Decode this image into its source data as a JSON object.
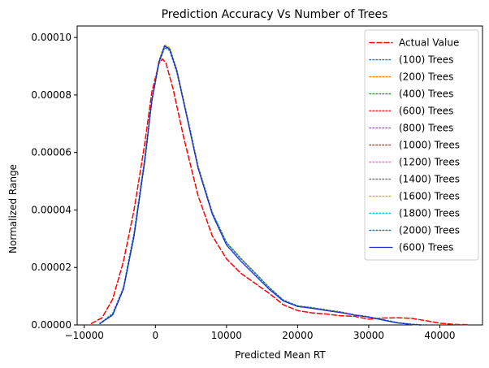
{
  "chart_data": {
    "type": "line",
    "title": "Prediction Accuracy Vs Number of Trees",
    "xlabel": "Predicted Mean RT",
    "ylabel": "Normalized Range",
    "xlim": [
      -11000,
      46000
    ],
    "ylim": [
      0,
      0.000104
    ],
    "xticks": [
      -10000,
      0,
      10000,
      20000,
      30000,
      40000
    ],
    "xtick_labels": [
      "−10000",
      "0",
      "10000",
      "20000",
      "30000",
      "40000"
    ],
    "yticks": [
      0,
      2e-05,
      4e-05,
      6e-05,
      8e-05,
      0.0001
    ],
    "ytick_labels": [
      "0.00000",
      "0.00002",
      "0.00004",
      "0.00006",
      "0.00008",
      "0.00010"
    ],
    "grid": false,
    "legend_position": "top-right",
    "series": [
      {
        "name": "Actual Value",
        "color": "#ff0000",
        "style": "dashed",
        "x": [
          -9000,
          -7500,
          -6000,
          -4500,
          -3000,
          -1500,
          -500,
          500,
          1000,
          1500,
          2500,
          4000,
          6000,
          8000,
          10000,
          12000,
          14000,
          16000,
          18000,
          20000,
          22000,
          24000,
          26000,
          28000,
          30000,
          32000,
          34000,
          36000,
          38000,
          40000,
          42000,
          44000
        ],
        "y": [
          5e-07,
          2.5e-06,
          9e-06,
          2.2e-05,
          4e-05,
          6.3e-05,
          8.1e-05,
          9.1e-05,
          9.25e-05,
          9.1e-05,
          8.2e-05,
          6.5e-05,
          4.5e-05,
          3.1e-05,
          2.3e-05,
          1.8e-05,
          1.45e-05,
          1.1e-05,
          7e-06,
          5e-06,
          4.2e-06,
          3.8e-06,
          3.2e-06,
          3e-06,
          2e-06,
          2.4e-06,
          2.5e-06,
          2.3e-06,
          1.5e-06,
          6e-07,
          2e-07,
          1e-07
        ]
      },
      {
        "name": "(100) Trees",
        "color": "#1f77b4",
        "style": "dotted",
        "x": [
          -7800,
          -6000,
          -4500,
          -3000,
          -1500,
          -500,
          500,
          1300,
          2000,
          3000,
          4500,
          6000,
          8000,
          10000,
          12000,
          14000,
          16000,
          18000,
          20000,
          22000,
          24000,
          26000,
          28000,
          30000,
          32000,
          34000,
          36000,
          37500
        ],
        "y": [
          5e-07,
          4e-06,
          1.3e-05,
          3.2e-05,
          5.8e-05,
          7.8e-05,
          9.1e-05,
          9.65e-05,
          9.55e-05,
          8.8e-05,
          7.2e-05,
          5.5e-05,
          3.9e-05,
          2.85e-05,
          2.3e-05,
          1.8e-05,
          1.3e-05,
          8.5e-06,
          6.5e-06,
          6e-06,
          5.2e-06,
          4.5e-06,
          3.5e-06,
          2.8e-06,
          1.8e-06,
          8e-07,
          2e-07,
          0.0
        ]
      },
      {
        "name": "(200) Trees",
        "color": "#ff7f0e",
        "style": "dotted",
        "x": [
          -7800,
          -6000,
          -4500,
          -3000,
          -1500,
          -500,
          500,
          1300,
          2000,
          3000,
          4500,
          6000,
          8000,
          10000,
          12000,
          14000,
          16000,
          18000,
          20000,
          22000,
          24000,
          26000,
          28000,
          30000,
          32000,
          34000,
          36000,
          37500
        ],
        "y": [
          5e-07,
          3.5e-06,
          1.25e-05,
          3.1e-05,
          5.7e-05,
          7.8e-05,
          9.2e-05,
          9.75e-05,
          9.65e-05,
          8.9e-05,
          7.25e-05,
          5.55e-05,
          3.92e-05,
          2.88e-05,
          2.32e-05,
          1.82e-05,
          1.31e-05,
          8.6e-06,
          6.6e-06,
          6e-06,
          5.2e-06,
          4.5e-06,
          3.5e-06,
          2.8e-06,
          1.8e-06,
          8e-07,
          2e-07,
          0.0
        ]
      },
      {
        "name": "(400) Trees",
        "color": "#2ca02c",
        "style": "dotted",
        "x": [
          -7800,
          -6000,
          -4500,
          -3000,
          -1500,
          -500,
          500,
          1300,
          2000,
          3000,
          4500,
          6000,
          8000,
          10000,
          12000,
          14000,
          16000,
          18000,
          20000,
          22000,
          24000,
          26000,
          28000,
          30000,
          32000,
          34000,
          36000,
          37500
        ],
        "y": [
          5e-07,
          3.5e-06,
          1.25e-05,
          3.1e-05,
          5.7e-05,
          7.8e-05,
          9.15e-05,
          9.7e-05,
          9.6e-05,
          8.85e-05,
          7.2e-05,
          5.5e-05,
          3.9e-05,
          2.86e-05,
          2.31e-05,
          1.81e-05,
          1.3e-05,
          8.6e-06,
          6.6e-06,
          6e-06,
          5.2e-06,
          4.5e-06,
          3.5e-06,
          2.8e-06,
          1.8e-06,
          8e-07,
          2e-07,
          0.0
        ]
      },
      {
        "name": "(600) Trees",
        "color": "#d62728",
        "style": "dotted",
        "x": [
          -7800,
          -6000,
          -4500,
          -3000,
          -1500,
          -500,
          500,
          1300,
          2000,
          3000,
          4500,
          6000,
          8000,
          10000,
          12000,
          14000,
          16000,
          18000,
          20000,
          22000,
          24000,
          26000,
          28000,
          30000,
          32000,
          34000,
          36000,
          37500
        ],
        "y": [
          5e-07,
          3.5e-06,
          1.25e-05,
          3.1e-05,
          5.7e-05,
          7.8e-05,
          9.15e-05,
          9.7e-05,
          9.6e-05,
          8.85e-05,
          7.2e-05,
          5.5e-05,
          3.9e-05,
          2.86e-05,
          2.31e-05,
          1.81e-05,
          1.3e-05,
          8.6e-06,
          6.6e-06,
          6e-06,
          5.2e-06,
          4.5e-06,
          3.5e-06,
          2.8e-06,
          1.8e-06,
          8e-07,
          2e-07,
          0.0
        ]
      },
      {
        "name": "(800) Trees",
        "color": "#9467bd",
        "style": "dotted",
        "x": [
          -7800,
          -6000,
          -4500,
          -3000,
          -1500,
          -500,
          500,
          1300,
          2000,
          3000,
          4500,
          6000,
          8000,
          10000,
          12000,
          14000,
          16000,
          18000,
          20000,
          22000,
          24000,
          26000,
          28000,
          30000,
          32000,
          34000,
          36000,
          37500
        ],
        "y": [
          5e-07,
          3.5e-06,
          1.25e-05,
          3.1e-05,
          5.7e-05,
          7.8e-05,
          9.15e-05,
          9.7e-05,
          9.6e-05,
          8.85e-05,
          7.2e-05,
          5.5e-05,
          3.9e-05,
          2.86e-05,
          2.31e-05,
          1.81e-05,
          1.3e-05,
          8.6e-06,
          6.6e-06,
          6e-06,
          5.2e-06,
          4.5e-06,
          3.5e-06,
          2.8e-06,
          1.8e-06,
          8e-07,
          2e-07,
          0.0
        ]
      },
      {
        "name": "(1000) Trees",
        "color": "#8c564b",
        "style": "dotted",
        "x": [
          -7800,
          -6000,
          -4500,
          -3000,
          -1500,
          -500,
          500,
          1300,
          2000,
          3000,
          4500,
          6000,
          8000,
          10000,
          12000,
          14000,
          16000,
          18000,
          20000,
          22000,
          24000,
          26000,
          28000,
          30000,
          32000,
          34000,
          36000,
          37500
        ],
        "y": [
          5e-07,
          3.5e-06,
          1.25e-05,
          3.1e-05,
          5.7e-05,
          7.8e-05,
          9.15e-05,
          9.7e-05,
          9.6e-05,
          8.85e-05,
          7.2e-05,
          5.5e-05,
          3.9e-05,
          2.86e-05,
          2.31e-05,
          1.81e-05,
          1.3e-05,
          8.6e-06,
          6.6e-06,
          6e-06,
          5.2e-06,
          4.5e-06,
          3.5e-06,
          2.8e-06,
          1.8e-06,
          8e-07,
          2e-07,
          0.0
        ]
      },
      {
        "name": "(1200) Trees",
        "color": "#e377c2",
        "style": "dotted",
        "x": [
          -7800,
          -6000,
          -4500,
          -3000,
          -1500,
          -500,
          500,
          1300,
          2000,
          3000,
          4500,
          6000,
          8000,
          10000,
          12000,
          14000,
          16000,
          18000,
          20000,
          22000,
          24000,
          26000,
          28000,
          30000,
          32000,
          34000,
          36000,
          37500
        ],
        "y": [
          5e-07,
          3.5e-06,
          1.25e-05,
          3.1e-05,
          5.7e-05,
          7.8e-05,
          9.15e-05,
          9.7e-05,
          9.6e-05,
          8.85e-05,
          7.2e-05,
          5.5e-05,
          3.9e-05,
          2.86e-05,
          2.31e-05,
          1.81e-05,
          1.3e-05,
          8.6e-06,
          6.6e-06,
          6e-06,
          5.2e-06,
          4.5e-06,
          3.5e-06,
          2.8e-06,
          1.8e-06,
          8e-07,
          2e-07,
          0.0
        ]
      },
      {
        "name": "(1400) Trees",
        "color": "#7f7f7f",
        "style": "dotted",
        "x": [
          -7800,
          -6000,
          -4500,
          -3000,
          -1500,
          -500,
          500,
          1300,
          2000,
          3000,
          4500,
          6000,
          8000,
          10000,
          12000,
          14000,
          16000,
          18000,
          20000,
          22000,
          24000,
          26000,
          28000,
          30000,
          32000,
          34000,
          36000,
          37500
        ],
        "y": [
          5e-07,
          3.5e-06,
          1.25e-05,
          3.1e-05,
          5.7e-05,
          7.8e-05,
          9.15e-05,
          9.7e-05,
          9.6e-05,
          8.85e-05,
          7.2e-05,
          5.5e-05,
          3.9e-05,
          2.86e-05,
          2.31e-05,
          1.81e-05,
          1.3e-05,
          8.6e-06,
          6.6e-06,
          6e-06,
          5.2e-06,
          4.5e-06,
          3.5e-06,
          2.8e-06,
          1.8e-06,
          8e-07,
          2e-07,
          0.0
        ]
      },
      {
        "name": "(1600) Trees",
        "color": "#bcbd22",
        "style": "dotted",
        "x": [
          -7800,
          -6000,
          -4500,
          -3000,
          -1500,
          -500,
          500,
          1300,
          2000,
          3000,
          4500,
          6000,
          8000,
          10000,
          12000,
          14000,
          16000,
          18000,
          20000,
          22000,
          24000,
          26000,
          28000,
          30000,
          32000,
          34000,
          36000,
          37500
        ],
        "y": [
          5e-07,
          3.5e-06,
          1.25e-05,
          3.1e-05,
          5.7e-05,
          7.8e-05,
          9.2e-05,
          9.75e-05,
          9.65e-05,
          8.9e-05,
          7.25e-05,
          5.55e-05,
          3.92e-05,
          2.88e-05,
          2.32e-05,
          1.82e-05,
          1.31e-05,
          8.6e-06,
          6.6e-06,
          6e-06,
          5.2e-06,
          4.5e-06,
          3.5e-06,
          2.8e-06,
          1.8e-06,
          8e-07,
          2e-07,
          0.0
        ]
      },
      {
        "name": "(1800) Trees",
        "color": "#17becf",
        "style": "dotted",
        "x": [
          -7800,
          -6000,
          -4500,
          -3000,
          -1500,
          -500,
          500,
          1300,
          2000,
          3000,
          4500,
          6000,
          8000,
          10000,
          12000,
          14000,
          16000,
          18000,
          20000,
          22000,
          24000,
          26000,
          28000,
          30000,
          32000,
          34000,
          36000,
          37500
        ],
        "y": [
          5e-07,
          3.5e-06,
          1.25e-05,
          3.1e-05,
          5.7e-05,
          7.8e-05,
          9.15e-05,
          9.7e-05,
          9.6e-05,
          8.85e-05,
          7.2e-05,
          5.5e-05,
          3.9e-05,
          2.86e-05,
          2.31e-05,
          1.81e-05,
          1.3e-05,
          8.6e-06,
          6.6e-06,
          6e-06,
          5.2e-06,
          4.5e-06,
          3.5e-06,
          2.8e-06,
          1.8e-06,
          8e-07,
          2e-07,
          0.0
        ]
      },
      {
        "name": "(2000) Trees",
        "color": "#1f77b4",
        "style": "dotted",
        "x": [
          -7800,
          -6000,
          -4500,
          -3000,
          -1500,
          -500,
          500,
          1300,
          2000,
          3000,
          4500,
          6000,
          8000,
          10000,
          12000,
          14000,
          16000,
          18000,
          20000,
          22000,
          24000,
          26000,
          28000,
          30000,
          32000,
          34000,
          36000,
          37500
        ],
        "y": [
          5e-07,
          3.5e-06,
          1.25e-05,
          3.1e-05,
          5.7e-05,
          7.8e-05,
          9.15e-05,
          9.7e-05,
          9.6e-05,
          8.85e-05,
          7.2e-05,
          5.5e-05,
          3.9e-05,
          2.86e-05,
          2.31e-05,
          1.81e-05,
          1.3e-05,
          8.6e-06,
          6.6e-06,
          6e-06,
          5.2e-06,
          4.5e-06,
          3.5e-06,
          2.8e-06,
          1.8e-06,
          8e-07,
          2e-07,
          0.0
        ]
      },
      {
        "name": "(600) Trees",
        "color": "#1a2ccc",
        "style": "solid",
        "x": [
          -7800,
          -6000,
          -4500,
          -3000,
          -1500,
          -500,
          500,
          1300,
          2000,
          3000,
          4500,
          6000,
          8000,
          10000,
          12000,
          14000,
          16000,
          18000,
          20000,
          22000,
          24000,
          26000,
          28000,
          30000,
          32000,
          34000,
          36000,
          37500
        ],
        "y": [
          5e-07,
          3.5e-06,
          1.25e-05,
          3.1e-05,
          5.7e-05,
          7.8e-05,
          9.15e-05,
          9.7e-05,
          9.6e-05,
          8.85e-05,
          7.15e-05,
          5.45e-05,
          3.85e-05,
          2.78e-05,
          2.22e-05,
          1.73e-05,
          1.24e-05,
          8.3e-06,
          6.4e-06,
          5.8e-06,
          5e-06,
          4.3e-06,
          3.4e-06,
          2.7e-06,
          1.7e-06,
          7e-07,
          2e-07,
          0.0
        ]
      }
    ]
  }
}
